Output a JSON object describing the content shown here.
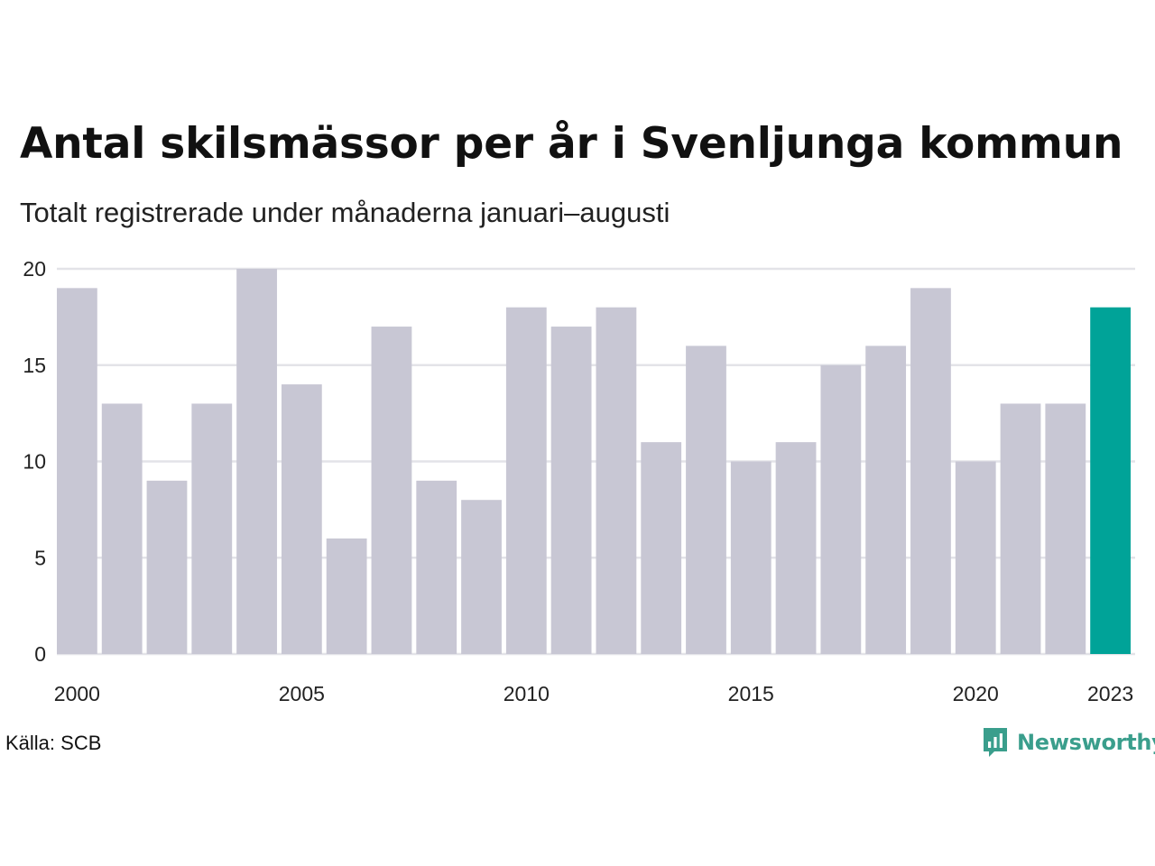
{
  "colors": {
    "bar_default": "#c8c7d4",
    "bar_highlight": "#00a398",
    "gridline": "#e3e3e8",
    "brand": "#3a9e8c"
  },
  "chart_data": {
    "type": "bar",
    "title": "Antal skilsmässor per år i Svenljunga kommun",
    "subtitle": "Totalt registrerade under månaderna januari–augusti",
    "categories": [
      2000,
      2001,
      2002,
      2003,
      2004,
      2005,
      2006,
      2007,
      2008,
      2009,
      2010,
      2011,
      2012,
      2013,
      2014,
      2015,
      2016,
      2017,
      2018,
      2019,
      2020,
      2021,
      2022,
      2023
    ],
    "values": [
      19,
      13,
      9,
      13,
      20,
      14,
      6,
      17,
      9,
      8,
      18,
      17,
      18,
      11,
      16,
      10,
      11,
      15,
      16,
      19,
      10,
      13,
      13,
      18
    ],
    "highlight": [
      2023
    ],
    "x_tick_labels": [
      "2000",
      "2005",
      "2010",
      "2015",
      "2020",
      "2023"
    ],
    "y_ticks": [
      0,
      5,
      10,
      15,
      20
    ],
    "ylim": [
      0,
      20
    ],
    "xlabel": "",
    "ylabel": "",
    "grid": "horizontal",
    "legend": "none"
  },
  "footer": {
    "source": "Källa: SCB",
    "brand_name": "Newsworthy",
    "brand_icon": "newsworthy-logo-icon"
  }
}
